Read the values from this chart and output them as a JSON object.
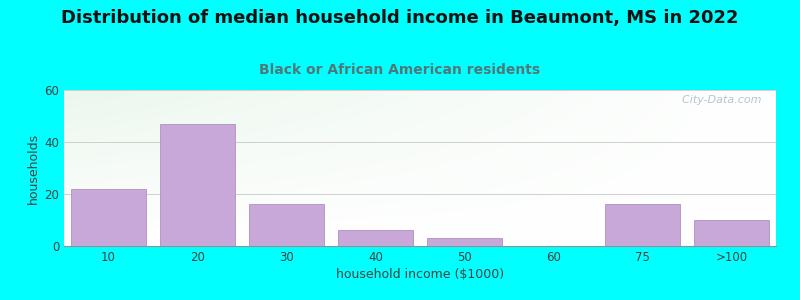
{
  "title": "Distribution of median household income in Beaumont, MS in 2022",
  "subtitle": "Black or African American residents",
  "xlabel": "household income ($1000)",
  "ylabel": "households",
  "background_color": "#00FFFF",
  "bar_color": "#c8a8d8",
  "bar_edge_color": "#b090c0",
  "categories": [
    "10",
    "20",
    "30",
    "40",
    "50",
    "60",
    "75",
    ">100"
  ],
  "values": [
    22,
    47,
    16,
    6,
    3,
    0,
    16,
    10
  ],
  "ylim": [
    0,
    60
  ],
  "yticks": [
    0,
    20,
    40,
    60
  ],
  "title_fontsize": 13,
  "subtitle_fontsize": 10,
  "axis_label_fontsize": 9,
  "tick_fontsize": 8.5,
  "watermark": "  City-Data.com",
  "title_color": "#111111",
  "subtitle_color": "#507878",
  "label_color": "#404040",
  "tick_color": "#404040"
}
